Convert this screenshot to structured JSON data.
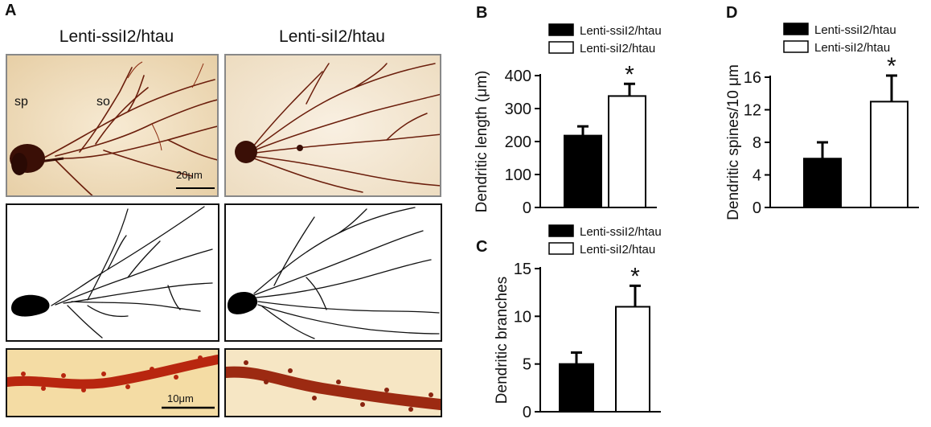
{
  "panel_a": {
    "letter": "A",
    "left_title": "Lenti-ssiI2/htau",
    "right_title": "Lenti-siI2/htau",
    "label_sp": "sp",
    "label_so": "so",
    "scale_top": "20μm",
    "scale_bottom": "10μm"
  },
  "legend": {
    "filled": "Lenti-ssiI2/htau",
    "open": "Lenti-siI2/htau"
  },
  "chart_data": [
    {
      "panel": "B",
      "type": "bar",
      "categories": [
        "Lenti-ssiI2/htau",
        "Lenti-siI2/htau"
      ],
      "values": [
        218,
        338
      ],
      "errors": [
        28,
        37
      ],
      "ylabel": "Dendritic length (μm)",
      "ylim": [
        0,
        400
      ],
      "yticks": [
        "0",
        "100",
        "200",
        "300",
        "400"
      ],
      "significance": "*"
    },
    {
      "panel": "C",
      "type": "bar",
      "categories": [
        "Lenti-ssiI2/htau",
        "Lenti-siI2/htau"
      ],
      "values": [
        5,
        11
      ],
      "errors": [
        1.2,
        2.2
      ],
      "ylabel": "Dendritic branches",
      "ylim": [
        0,
        15
      ],
      "yticks": [
        "0",
        "5",
        "10",
        "15"
      ],
      "significance": "*"
    },
    {
      "panel": "D",
      "type": "bar",
      "categories": [
        "Lenti-ssiI2/htau",
        "Lenti-siI2/htau"
      ],
      "values": [
        6,
        13
      ],
      "errors": [
        2,
        3.2
      ],
      "ylabel": "Dendritic spines/10 μm",
      "ylim": [
        0,
        16
      ],
      "yticks": [
        "0",
        "4",
        "8",
        "12",
        "16"
      ],
      "significance": "*"
    }
  ],
  "colors": {
    "bar_filled": "#000000",
    "bar_open": "#ffffff",
    "micrograph_bg": "#f3e3c6",
    "neuron_brown": "#6b1e0c",
    "spine_red": "#b8260f",
    "spine_bg": "#f4dca4"
  }
}
